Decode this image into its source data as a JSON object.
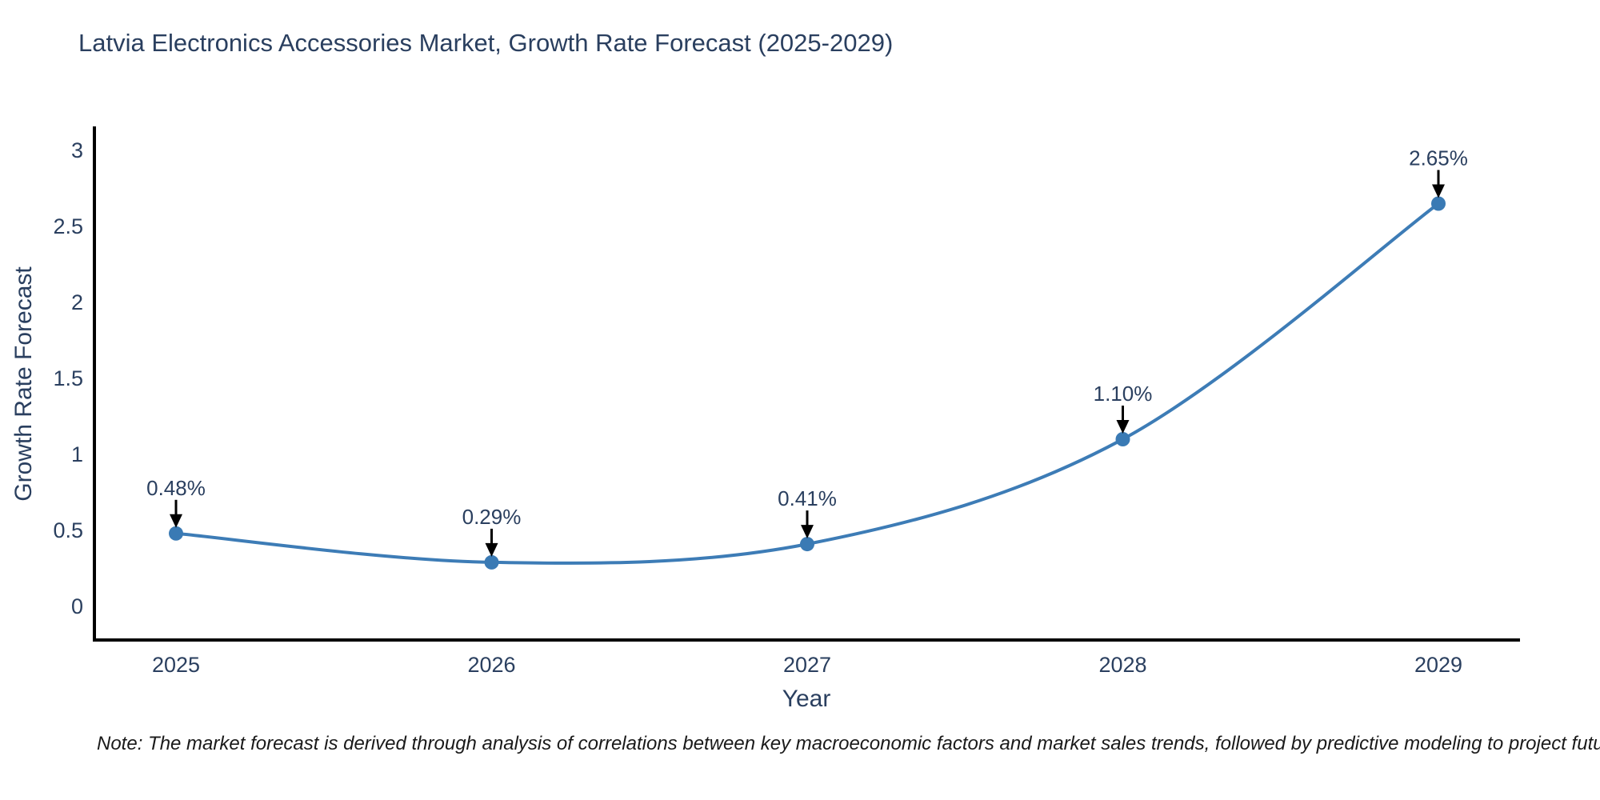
{
  "page": {
    "background_color": "#ffffff"
  },
  "header": {
    "title": "Latvia Electronics Accessories Market, Growth Rate Forecast (2025-2029)"
  },
  "footnote": {
    "text": "Note: The market forecast is derived through analysis of correlations between key macroeconomic factors and market sales trends, followed by predictive modeling to project future sales"
  },
  "chart_data": {
    "type": "line",
    "title": "Latvia Electronics Accessories Market, Growth Rate Forecast (2025-2029)",
    "xlabel": "Year",
    "ylabel": "Growth Rate Forecast",
    "x": [
      2025,
      2026,
      2027,
      2028,
      2029
    ],
    "xticks": [
      "2025",
      "2026",
      "2027",
      "2028",
      "2029"
    ],
    "values": [
      0.48,
      0.29,
      0.41,
      1.1,
      2.65
    ],
    "point_labels": [
      "0.48%",
      "0.29%",
      "0.41%",
      "1.10%",
      "2.65%"
    ],
    "yticks": [
      0,
      0.5,
      1,
      1.5,
      2,
      2.5,
      3
    ],
    "ytick_labels": [
      "0",
      "0.5",
      "1",
      "1.5",
      "2",
      "2.5",
      "3"
    ],
    "ylim": [
      0,
      3
    ],
    "line_shape": "spline",
    "grid": false,
    "legend_position": "none",
    "colors": {
      "line": "#3d7cb6",
      "marker": "#3a7ab4",
      "axis": "#000000",
      "tick_text": "#2a3f5f",
      "annotation_text": "#2a3f5f",
      "annotation_arrow": "#000000"
    }
  }
}
